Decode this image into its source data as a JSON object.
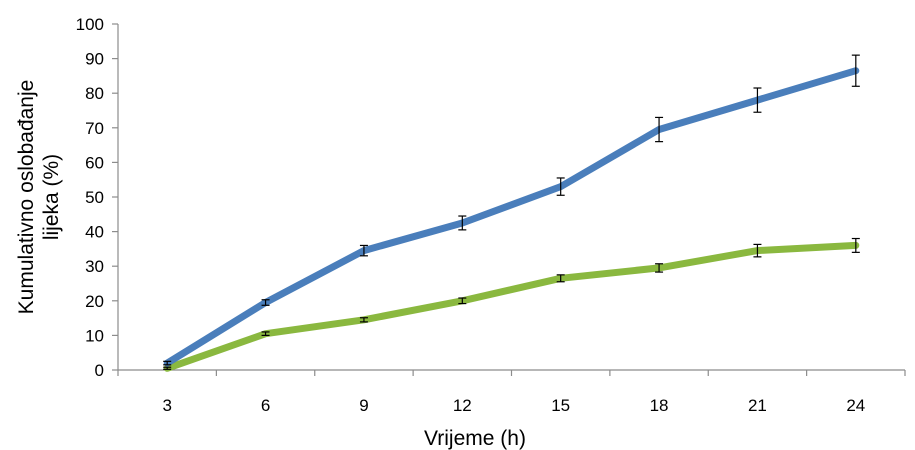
{
  "chart_data": {
    "type": "line",
    "title": "",
    "xlabel": "Vrijeme (h)",
    "ylabel_lines": [
      "Kumulativno oslobađanje",
      "lijeka  (%)"
    ],
    "categories": [
      "3",
      "6",
      "9",
      "12",
      "15",
      "18",
      "21",
      "24"
    ],
    "x": [
      3,
      6,
      9,
      12,
      15,
      18,
      21,
      24
    ],
    "ylim": [
      0,
      100
    ],
    "yticks": [
      "0",
      "10",
      "20",
      "30",
      "40",
      "50",
      "60",
      "70",
      "80",
      "90",
      "100"
    ],
    "grid": false,
    "legend": "none",
    "series": [
      {
        "color": "#4a7ebb",
        "values": [
          2,
          19.5,
          34.5,
          42.5,
          53,
          69.5,
          78,
          86.5
        ],
        "errors": [
          0.5,
          0.8,
          1.5,
          2,
          2.5,
          3.5,
          3.5,
          4.5
        ]
      },
      {
        "color": "#8ab83f",
        "values": [
          0.5,
          10.5,
          14.5,
          20,
          26.5,
          29.5,
          34.5,
          36
        ],
        "errors": [
          0.3,
          0.5,
          0.6,
          0.8,
          1,
          1.2,
          1.8,
          2
        ]
      }
    ]
  }
}
